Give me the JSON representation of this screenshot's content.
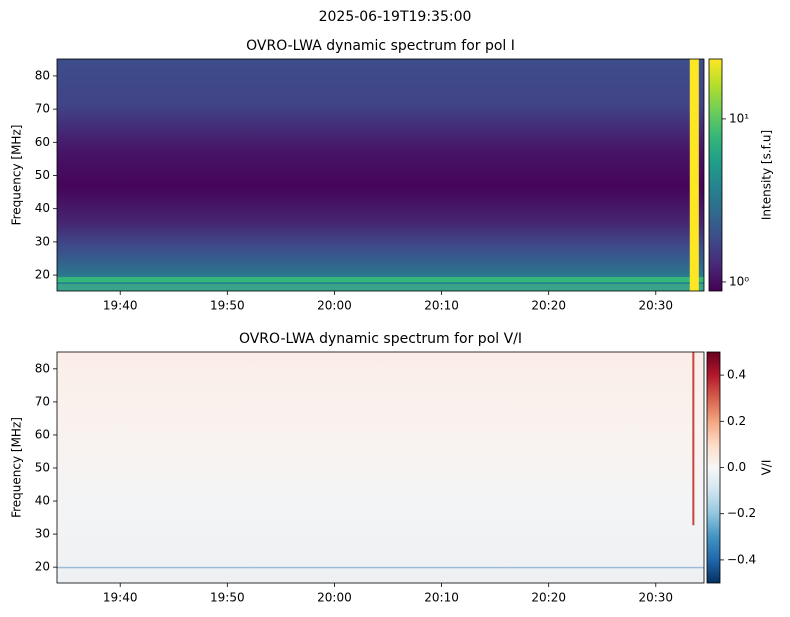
{
  "title": "2025-06-19T19:35:00",
  "chart_data": [
    {
      "type": "heatmap",
      "title": "OVRO-LWA dynamic spectrum for pol I",
      "ylabel": "Frequency [MHz]",
      "xlim": [
        1174.1,
        1234.5
      ],
      "xticks": [
        {
          "value": 1180,
          "label": "19:40"
        },
        {
          "value": 1190,
          "label": "19:50"
        },
        {
          "value": 1200,
          "label": "20:00"
        },
        {
          "value": 1210,
          "label": "20:10"
        },
        {
          "value": 1220,
          "label": "20:20"
        },
        {
          "value": 1230,
          "label": "20:30"
        }
      ],
      "ylim": [
        15.2,
        85.1
      ],
      "yticks": [
        20,
        30,
        40,
        50,
        60,
        70,
        80
      ],
      "colorbar": {
        "label": "Intensity [s.f.u]",
        "scale": "log",
        "lim": [
          0.88,
          23.3
        ],
        "colormap": "viridis",
        "ticks": [
          {
            "value": 1,
            "label": "10⁰"
          },
          {
            "value": 10,
            "label": "10¹"
          }
        ]
      }
    },
    {
      "type": "heatmap",
      "title": "OVRO-LWA dynamic spectrum for pol V/I",
      "ylabel": "Frequency [MHz]",
      "xlim": [
        1174.1,
        1234.5
      ],
      "xticks": [
        {
          "value": 1180,
          "label": "19:40"
        },
        {
          "value": 1190,
          "label": "19:50"
        },
        {
          "value": 1200,
          "label": "20:00"
        },
        {
          "value": 1210,
          "label": "20:10"
        },
        {
          "value": 1220,
          "label": "20:20"
        },
        {
          "value": 1230,
          "label": "20:30"
        }
      ],
      "ylim": [
        15.2,
        85.1
      ],
      "yticks": [
        20,
        30,
        40,
        50,
        60,
        70,
        80
      ],
      "colorbar": {
        "label": "V/I",
        "scale": "linear",
        "lim": [
          -0.5,
          0.5
        ],
        "colormap": "RdBu_r",
        "ticks": [
          {
            "value": -0.4,
            "label": "−0.4"
          },
          {
            "value": -0.2,
            "label": "−0.2"
          },
          {
            "value": 0,
            "label": "0.0"
          },
          0.2,
          0.4
        ]
      }
    }
  ]
}
